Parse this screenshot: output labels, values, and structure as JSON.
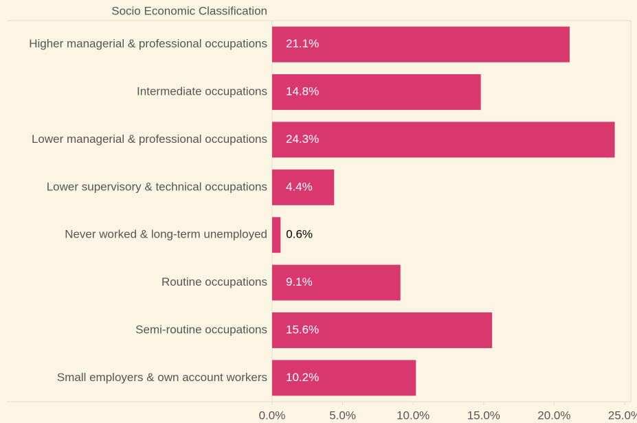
{
  "chart_data": {
    "type": "hbar",
    "y_label": "Socio Economic Classification",
    "categories": [
      "Higher managerial & professional occupations",
      "Intermediate occupations",
      "Lower managerial & professional occupations",
      "Lower supervisory & technical occupations",
      "Never worked & long-term unemployed",
      "Routine occupations",
      "Semi-routine occupations",
      "Small employers & own account workers"
    ],
    "values": [
      21.1,
      14.8,
      24.3,
      4.4,
      0.6,
      9.1,
      15.6,
      10.2
    ],
    "value_labels": [
      "21.1%",
      "14.8%",
      "24.3%",
      "4.4%",
      "0.6%",
      "9.1%",
      "15.6%",
      "10.2%"
    ],
    "color": "#d9386e",
    "xlim": [
      0,
      25
    ],
    "xticks": [
      {
        "value": 0,
        "label": "0.0%"
      },
      {
        "value": 5,
        "label": "5.0%"
      },
      {
        "value": 10,
        "label": "10.0%"
      },
      {
        "value": 15,
        "label": "15.0%"
      },
      {
        "value": 20,
        "label": "20.0%"
      },
      {
        "value": 25,
        "label": "25.0%"
      }
    ],
    "grid": false
  }
}
